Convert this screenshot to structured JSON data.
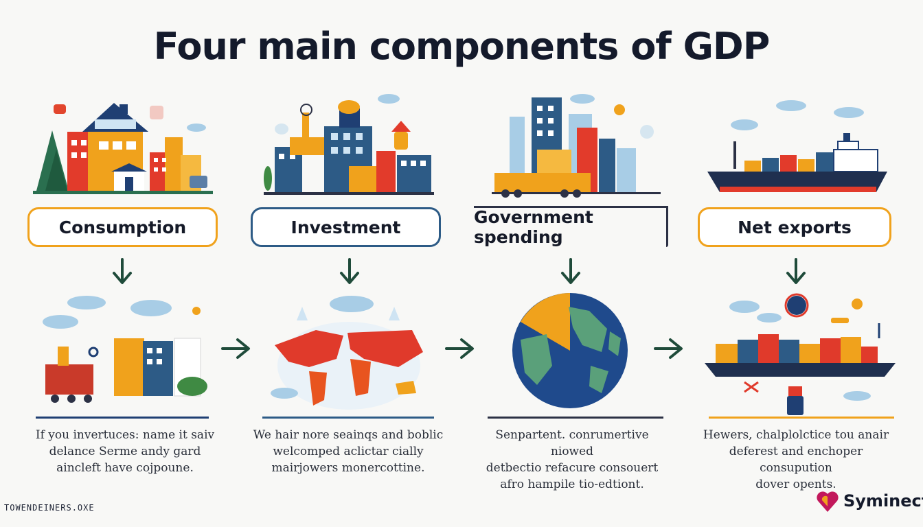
{
  "title": "Four main components of GDP",
  "components": [
    {
      "label": "Consumption",
      "border_color": "#f0a21c",
      "description": [
        "If you invertuces: name it saiv",
        "delance Serme andy gard",
        "aincleft have cojpoune."
      ]
    },
    {
      "label": "Investment",
      "border_color": "#2d5b86",
      "description": [
        "We hair nore seainqs and boblic",
        "welcomped aclictar cially",
        "mairjowers monercottine."
      ]
    },
    {
      "label": "Government spending",
      "border_color": "#2c3145",
      "description": [
        "Senpartent. conrumertive niowed",
        "detbectio refacure consouert",
        "afro hampile tio-edtiont."
      ]
    },
    {
      "label": "Net exports",
      "border_color": "#f0a21c",
      "description": [
        "Hewers, chalplolctice tou anair",
        "deferest and enchoper consupution",
        "dover opents."
      ]
    }
  ],
  "footer": {
    "left_text": "TOWENDEINERS.OXE",
    "brand": "Syminect"
  },
  "colors": {
    "orange": "#f0a21c",
    "navy": "#1f3f73",
    "red": "#e03a2b",
    "teal_arrow": "#1f4b3a"
  }
}
